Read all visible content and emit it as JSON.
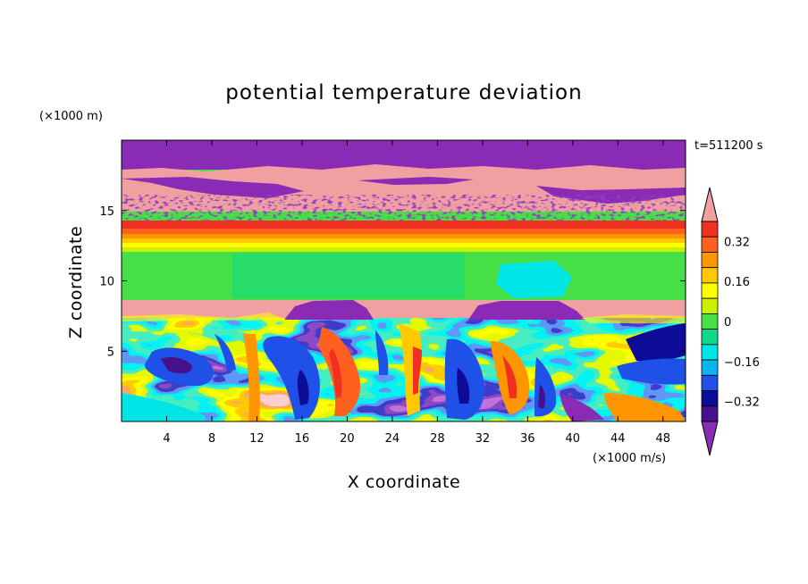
{
  "chart_data": {
    "type": "heatmap",
    "title": "potential temperature deviation",
    "xlabel": "X coordinate",
    "ylabel": "Z coordinate",
    "x_unit": "(×1000 m/s)",
    "y_unit": "(×1000 m)",
    "time_label": "t=511200 s",
    "xlim": [
      0,
      50
    ],
    "ylim": [
      0,
      20
    ],
    "x_ticks": [
      4,
      8,
      12,
      16,
      20,
      24,
      28,
      32,
      36,
      40,
      44,
      48
    ],
    "y_ticks": [
      5,
      10,
      15
    ],
    "colorbar": {
      "levels": [
        -0.4,
        -0.32,
        -0.24,
        -0.16,
        -0.08,
        0,
        0.08,
        0.16,
        0.24,
        0.32,
        0.4
      ],
      "labels": [
        "0.32",
        "0.16",
        "0",
        "−0.16",
        "−0.32"
      ],
      "label_values": [
        0.32,
        0.16,
        0,
        -0.16,
        -0.32
      ],
      "colors": [
        "#8a2bb5",
        "#46128c",
        "#0c0c96",
        "#1f50e8",
        "#0ab4f0",
        "#00e6e6",
        "#10d888",
        "#46e046",
        "#c8f000",
        "#ffff00",
        "#ffc800",
        "#ff9600",
        "#ff6020",
        "#f03020",
        "#f0a0a0"
      ]
    },
    "bands": [
      {
        "z": [
          18.0,
          20.0
        ],
        "value": "-0.45"
      },
      {
        "z": [
          15.0,
          18.0
        ],
        "value": "0.45"
      },
      {
        "z": [
          13.5,
          15.0
        ],
        "value": "mixed"
      },
      {
        "z": [
          12.5,
          13.5
        ],
        "value": "0.3"
      },
      {
        "z": [
          12.0,
          12.5
        ],
        "value": "0.2"
      },
      {
        "z": [
          8.5,
          12.0
        ],
        "value": "0.0"
      },
      {
        "z": [
          7.3,
          8.5
        ],
        "value": "0.45"
      },
      {
        "z": [
          0.0,
          7.3
        ],
        "value": "turbulent"
      }
    ]
  }
}
